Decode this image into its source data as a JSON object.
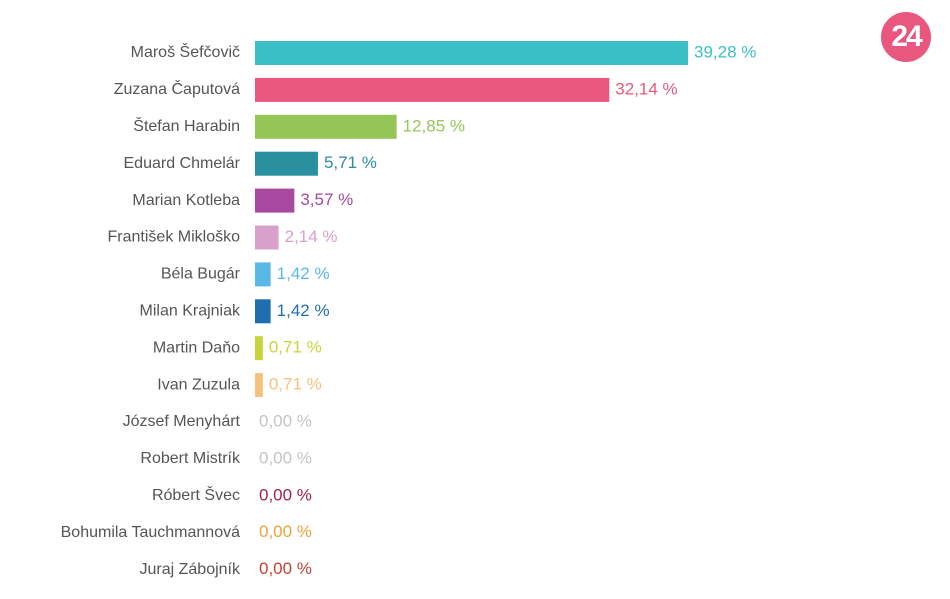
{
  "chart_data": {
    "type": "barh",
    "categories": [
      "Maroš Šefčovič",
      "Zuzana Čaputová",
      "Štefan Harabin",
      "Eduard Chmelár",
      "Marian Kotleba",
      "František Mikloško",
      "Béla Bugár",
      "Milan Krajniak",
      "Martin Daňo",
      "Ivan Zuzula",
      "József Menyhárt",
      "Robert Mistrík",
      "Róbert Švec",
      "Bohumila Tauchmannová",
      "Juraj Zábojník"
    ],
    "values": [
      39.28,
      32.14,
      12.85,
      5.71,
      3.57,
      2.14,
      1.42,
      1.42,
      0.71,
      0.71,
      0,
      0,
      0,
      0,
      0
    ],
    "value_labels": [
      "39,28 %",
      "32,14 %",
      "12,85 %",
      "5,71 %",
      "3,57 %",
      "2,14 %",
      "1,42 %",
      "1,42 %",
      "0,71 %",
      "0,71 %",
      "0,00 %",
      "0,00 %",
      "0,00 %",
      "0,00 %",
      "0,00 %"
    ],
    "colors": [
      "#3bbfc6",
      "#e9577f",
      "#96c557",
      "#2a8f9e",
      "#a8499f",
      "#d9a0cc",
      "#5ab8e6",
      "#1f6fb0",
      "#c7d53a",
      "#f4c27a",
      "#c4c4c4",
      "#c4c4c4",
      "#a0244c",
      "#e9a23c",
      "#c0432e"
    ]
  },
  "logo": "24"
}
